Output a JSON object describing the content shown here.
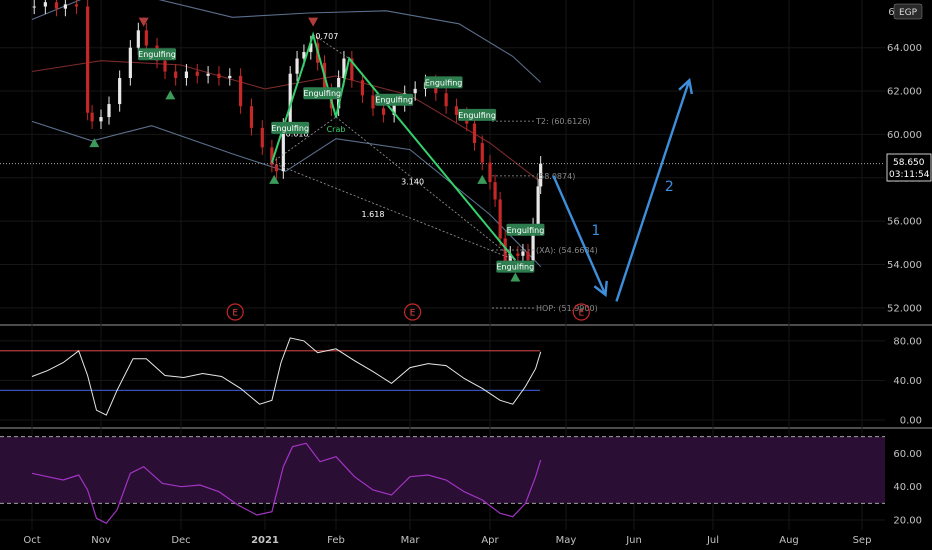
{
  "currency": "EGP",
  "price_label": {
    "price": "58.650",
    "countdown": "03:11:54"
  },
  "y_axis_top_partial": "66",
  "chart_data": [
    {
      "type": "candlestick",
      "name": "price",
      "yticks": [
        "64.000",
        "62.000",
        "60.000",
        "58.000",
        "56.000",
        "54.000",
        "52.000"
      ],
      "ytick_values": [
        64,
        62,
        60,
        58,
        56,
        54,
        52
      ],
      "ylim": [
        51.3,
        66.2
      ],
      "last_price": 58.65,
      "xticks": [
        "Oct",
        "Nov",
        "Dec",
        "2021",
        "Feb",
        "Mar",
        "Apr",
        "May",
        "Jun",
        "Jul",
        "Aug",
        "Sep"
      ],
      "xtick_dates": [
        "2020-10-01",
        "2020-11-01",
        "2020-12-01",
        "2021-01-01",
        "2021-02-01",
        "2021-03-01",
        "2021-04-01",
        "2021-05-01",
        "2021-06-01",
        "2021-07-01",
        "2021-08-01",
        "2021-09-01"
      ],
      "close_series": [
        [
          "2020-10-02",
          65.9
        ],
        [
          "2020-10-07",
          66.1
        ],
        [
          "2020-10-12",
          65.8
        ],
        [
          "2020-10-16",
          66.0
        ],
        [
          "2020-10-21",
          65.9
        ],
        [
          "2020-10-26",
          61.0
        ],
        [
          "2020-10-28",
          60.6
        ],
        [
          "2020-11-01",
          60.8
        ],
        [
          "2020-11-04",
          61.4
        ],
        [
          "2020-11-08",
          62.6
        ],
        [
          "2020-11-12",
          64.0
        ],
        [
          "2020-11-15",
          64.8
        ],
        [
          "2020-11-18",
          64.1
        ],
        [
          "2020-11-22",
          63.4
        ],
        [
          "2020-11-25",
          62.9
        ],
        [
          "2020-11-29",
          62.6
        ],
        [
          "2020-12-03",
          62.9
        ],
        [
          "2020-12-07",
          62.7
        ],
        [
          "2020-12-11",
          62.8
        ],
        [
          "2020-12-15",
          62.6
        ],
        [
          "2020-12-19",
          62.7
        ],
        [
          "2020-12-23",
          61.3
        ],
        [
          "2020-12-27",
          60.3
        ],
        [
          "2020-12-31",
          59.4
        ],
        [
          "2021-01-04",
          58.6
        ],
        [
          "2021-01-06",
          58.3
        ],
        [
          "2021-01-09",
          60.4
        ],
        [
          "2021-01-12",
          62.8
        ],
        [
          "2021-01-15",
          63.5
        ],
        [
          "2021-01-18",
          63.8
        ],
        [
          "2021-01-21",
          64.2
        ],
        [
          "2021-01-24",
          63.3
        ],
        [
          "2021-01-27",
          62.0
        ],
        [
          "2021-01-30",
          61.2
        ],
        [
          "2021-02-02",
          62.6
        ],
        [
          "2021-02-04",
          63.5
        ],
        [
          "2021-02-07",
          62.5
        ],
        [
          "2021-02-11",
          61.8
        ],
        [
          "2021-02-15",
          61.2
        ],
        [
          "2021-02-19",
          60.9
        ],
        [
          "2021-02-23",
          61.4
        ],
        [
          "2021-02-27",
          61.9
        ],
        [
          "2021-03-03",
          62.1
        ],
        [
          "2021-03-07",
          62.4
        ],
        [
          "2021-03-11",
          61.9
        ],
        [
          "2021-03-15",
          61.3
        ],
        [
          "2021-03-19",
          60.9
        ],
        [
          "2021-03-23",
          60.5
        ],
        [
          "2021-03-26",
          59.6
        ],
        [
          "2021-03-29",
          58.7
        ],
        [
          "2021-04-01",
          57.8
        ],
        [
          "2021-04-03",
          57.0
        ],
        [
          "2021-04-05",
          55.2
        ],
        [
          "2021-04-07",
          54.1
        ],
        [
          "2021-04-09",
          54.5
        ],
        [
          "2021-04-12",
          54.4
        ],
        [
          "2021-04-14",
          54.6
        ],
        [
          "2021-04-16",
          54.2
        ],
        [
          "2021-04-18",
          55.8
        ],
        [
          "2021-04-20",
          57.6
        ],
        [
          "2021-04-21",
          58.65
        ]
      ],
      "bands": {
        "upper": [
          [
            "2020-10-01",
            65.3
          ],
          [
            "2020-11-01",
            66.6
          ],
          [
            "2020-11-20",
            66.3
          ],
          [
            "2020-12-20",
            65.4
          ],
          [
            "2021-01-20",
            65.6
          ],
          [
            "2021-02-20",
            65.7
          ],
          [
            "2021-03-20",
            65.1
          ],
          [
            "2021-04-10",
            63.6
          ],
          [
            "2021-04-21",
            62.4
          ]
        ],
        "middle": [
          [
            "2020-10-01",
            62.9
          ],
          [
            "2020-11-01",
            63.4
          ],
          [
            "2020-12-01",
            63.2
          ],
          [
            "2021-01-01",
            62.1
          ],
          [
            "2021-02-01",
            62.7
          ],
          [
            "2021-03-01",
            61.8
          ],
          [
            "2021-04-01",
            59.6
          ],
          [
            "2021-04-21",
            57.8
          ]
        ],
        "lower": [
          [
            "2020-10-01",
            60.6
          ],
          [
            "2020-10-28",
            59.7
          ],
          [
            "2020-11-20",
            60.4
          ],
          [
            "2020-12-20",
            59.1
          ],
          [
            "2021-01-10",
            58.3
          ],
          [
            "2021-02-01",
            59.8
          ],
          [
            "2021-03-01",
            59.3
          ],
          [
            "2021-04-01",
            56.3
          ],
          [
            "2021-04-21",
            53.9
          ]
        ]
      },
      "last_price_line": 58.65,
      "harmonic_pattern": {
        "points": [
          [
            "2021-01-04",
            58.7
          ],
          [
            "2021-01-22",
            64.6
          ],
          [
            "2021-02-01",
            60.8
          ],
          [
            "2021-02-06",
            63.5
          ],
          [
            "2021-04-11",
            54.2
          ]
        ],
        "labels": [
          {
            "text": "0.618",
            "date": "2021-01-15",
            "price": 59.9
          },
          {
            "text": "0.707",
            "date": "2021-01-28",
            "price": 64.4
          },
          {
            "text": "Crab",
            "date": "2021-02-01",
            "price": 60.1
          },
          {
            "text": "3.140",
            "date": "2021-03-02",
            "price": 57.7
          },
          {
            "text": "1.618",
            "date": "2021-02-15",
            "price": 56.2
          }
        ]
      },
      "levels": [
        {
          "label": "T2: (60.6126)",
          "price": 60.6126
        },
        {
          "label": "(58.0874)",
          "price": 58.0874
        },
        {
          "label": "(XA): (54.6684)",
          "price": 54.6684
        },
        {
          "label": "HOP: (51.9900)",
          "price": 51.99
        }
      ],
      "engulfing_tags": [
        {
          "text": "Engulfing",
          "date": "2020-11-22",
          "price": 63.7
        },
        {
          "text": "Engulfing",
          "date": "2021-01-12",
          "price": 60.3
        },
        {
          "text": "Engulfing",
          "date": "2021-01-26",
          "price": 61.9
        },
        {
          "text": "Engulfing",
          "date": "2021-02-23",
          "price": 61.6
        },
        {
          "text": "Engulfing",
          "date": "2021-03-14",
          "price": 62.4
        },
        {
          "text": "Engulfing",
          "date": "2021-03-27",
          "price": 60.9
        },
        {
          "text": "Engulfing",
          "date": "2021-04-15",
          "price": 55.6
        },
        {
          "text": "Engulfing",
          "date": "2021-04-11",
          "price": 53.9
        }
      ],
      "up_triangles": [
        [
          "2020-10-29",
          59.6
        ],
        [
          "2020-11-27",
          61.8
        ],
        [
          "2021-01-05",
          57.9
        ],
        [
          "2021-03-29",
          57.9
        ],
        [
          "2021-04-11",
          53.4
        ]
      ],
      "down_triangles": [
        [
          "2020-11-17",
          65.2
        ],
        [
          "2021-01-22",
          65.2
        ]
      ],
      "earnings_markers": [
        {
          "text": "E",
          "date": "2020-12-21"
        },
        {
          "text": "E",
          "date": "2021-03-02"
        },
        {
          "text": "E",
          "date": "2021-05-08"
        }
      ],
      "projection": {
        "leg1": {
          "label": "1",
          "points": [
            [
              "2021-04-26",
              58.1
            ],
            [
              "2021-05-19",
              52.6
            ]
          ]
        },
        "leg2": {
          "label": "2",
          "points": [
            [
              "2021-05-24",
              52.3
            ],
            [
              "2021-06-22",
              62.5
            ]
          ]
        }
      }
    },
    {
      "type": "line",
      "name": "oscillator-1",
      "yticks": [
        "80.00",
        "40.00",
        "0.00"
      ],
      "ytick_values": [
        80,
        40,
        0
      ],
      "ylim": [
        -6,
        94
      ],
      "series": [
        [
          "2020-10-01",
          44
        ],
        [
          "2020-10-08",
          50
        ],
        [
          "2020-10-15",
          58
        ],
        [
          "2020-10-22",
          70
        ],
        [
          "2020-10-26",
          45
        ],
        [
          "2020-10-30",
          10
        ],
        [
          "2020-11-03",
          5
        ],
        [
          "2020-11-07",
          30
        ],
        [
          "2020-11-13",
          62
        ],
        [
          "2020-11-18",
          62
        ],
        [
          "2020-11-25",
          45
        ],
        [
          "2020-12-02",
          43
        ],
        [
          "2020-12-09",
          47
        ],
        [
          "2020-12-16",
          44
        ],
        [
          "2020-12-23",
          32
        ],
        [
          "2020-12-30",
          16
        ],
        [
          "2021-01-04",
          20
        ],
        [
          "2021-01-08",
          58
        ],
        [
          "2021-01-12",
          83
        ],
        [
          "2021-01-18",
          80
        ],
        [
          "2021-01-24",
          68
        ],
        [
          "2021-02-01",
          72
        ],
        [
          "2021-02-08",
          60
        ],
        [
          "2021-02-15",
          49
        ],
        [
          "2021-02-22",
          37
        ],
        [
          "2021-03-01",
          53
        ],
        [
          "2021-03-08",
          57
        ],
        [
          "2021-03-15",
          55
        ],
        [
          "2021-03-22",
          42
        ],
        [
          "2021-03-29",
          32
        ],
        [
          "2021-04-05",
          20
        ],
        [
          "2021-04-10",
          16
        ],
        [
          "2021-04-15",
          34
        ],
        [
          "2021-04-19",
          52
        ],
        [
          "2021-04-21",
          69
        ]
      ],
      "hlines": [
        {
          "price": 70,
          "color": "#b23b3b"
        },
        {
          "price": 30,
          "color": "#3a4fb8"
        }
      ]
    },
    {
      "type": "line",
      "name": "oscillator-2",
      "yticks": [
        "60.00",
        "40.00",
        "20.00"
      ],
      "ytick_values": [
        60,
        40,
        20
      ],
      "ylim": [
        14,
        74
      ],
      "series": [
        [
          "2020-10-01",
          48
        ],
        [
          "2020-10-08",
          46
        ],
        [
          "2020-10-15",
          44
        ],
        [
          "2020-10-22",
          47
        ],
        [
          "2020-10-26",
          38
        ],
        [
          "2020-10-30",
          21
        ],
        [
          "2020-11-03",
          18
        ],
        [
          "2020-11-07",
          26
        ],
        [
          "2020-11-12",
          48
        ],
        [
          "2020-11-17",
          52
        ],
        [
          "2020-11-24",
          42
        ],
        [
          "2020-12-01",
          40
        ],
        [
          "2020-12-08",
          41
        ],
        [
          "2020-12-15",
          37
        ],
        [
          "2020-12-22",
          29
        ],
        [
          "2020-12-29",
          23
        ],
        [
          "2021-01-04",
          25
        ],
        [
          "2021-01-09",
          52
        ],
        [
          "2021-01-13",
          64
        ],
        [
          "2021-01-19",
          66
        ],
        [
          "2021-01-25",
          55
        ],
        [
          "2021-02-01",
          58
        ],
        [
          "2021-02-08",
          46
        ],
        [
          "2021-02-15",
          38
        ],
        [
          "2021-02-22",
          35
        ],
        [
          "2021-03-01",
          46
        ],
        [
          "2021-03-08",
          47
        ],
        [
          "2021-03-15",
          44
        ],
        [
          "2021-03-22",
          37
        ],
        [
          "2021-03-29",
          32
        ],
        [
          "2021-04-05",
          24
        ],
        [
          "2021-04-10",
          22
        ],
        [
          "2021-04-15",
          30
        ],
        [
          "2021-04-19",
          46
        ],
        [
          "2021-04-21",
          56
        ]
      ],
      "hlines": [
        {
          "price": 70
        },
        {
          "price": 30
        }
      ]
    }
  ]
}
